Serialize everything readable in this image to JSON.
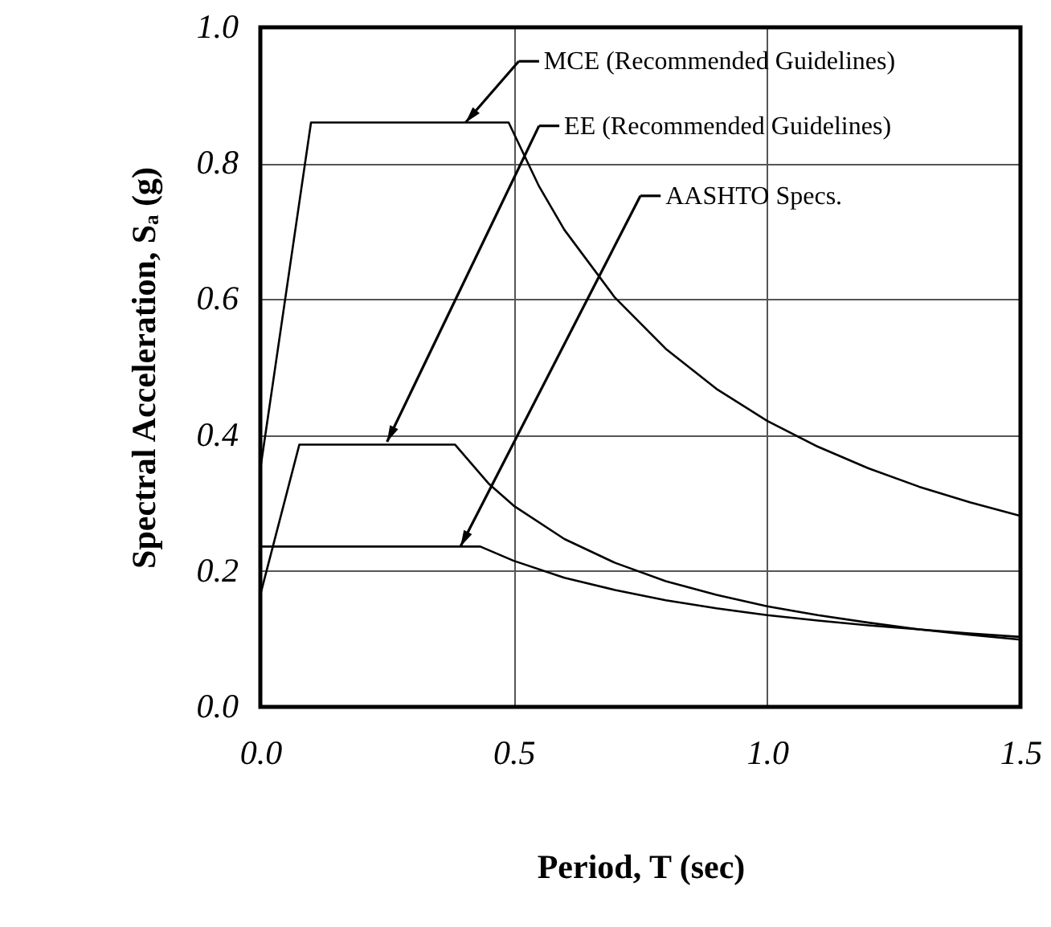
{
  "chart_data": {
    "type": "line",
    "xlabel": "Period, T (sec)",
    "ylabel": "Spectral Acceleration, Sₐ (g)",
    "xlim": [
      0,
      1.5
    ],
    "ylim": [
      0,
      1.0
    ],
    "xticks": [
      {
        "value": 0,
        "label": "0.0"
      },
      {
        "value": 0.5,
        "label": "0.5"
      },
      {
        "value": 1.0,
        "label": "1.0"
      },
      {
        "value": 1.5,
        "label": "1.5"
      }
    ],
    "yticks": [
      {
        "value": 0,
        "label": "0.0"
      },
      {
        "value": 0.2,
        "label": "0.2"
      },
      {
        "value": 0.4,
        "label": "0.4"
      },
      {
        "value": 0.6,
        "label": "0.6"
      },
      {
        "value": 0.8,
        "label": "0.8"
      },
      {
        "value": 1.0,
        "label": "1.0"
      }
    ],
    "grid": true,
    "marker": "none",
    "line_style": "solid",
    "series": [
      {
        "color": "#000000",
        "x": [
          0,
          0.1,
          0.49,
          0.55,
          0.6,
          0.7,
          0.8,
          0.9,
          1.0,
          1.1,
          1.2,
          1.3,
          1.4,
          1.5
        ],
        "values": [
          0.35,
          0.86,
          0.86,
          0.766,
          0.702,
          0.602,
          0.527,
          0.468,
          0.421,
          0.383,
          0.351,
          0.324,
          0.301,
          0.281
        ]
      },
      {
        "color": "#000000",
        "x": [
          0,
          0.077,
          0.384,
          0.45,
          0.5,
          0.6,
          0.7,
          0.8,
          0.9,
          1.0,
          1.1,
          1.2,
          1.3,
          1.4,
          1.5
        ],
        "values": [
          0.165,
          0.386,
          0.386,
          0.329,
          0.296,
          0.247,
          0.212,
          0.185,
          0.165,
          0.148,
          0.135,
          0.124,
          0.114,
          0.106,
          0.099
        ]
      },
      {
        "color": "#000000",
        "x": [
          0,
          0.434,
          0.5,
          0.6,
          0.7,
          0.8,
          0.9,
          1.0,
          1.1,
          1.2,
          1.3,
          1.4,
          1.5
        ],
        "values": [
          0.236,
          0.236,
          0.215,
          0.19,
          0.172,
          0.157,
          0.145,
          0.135,
          0.127,
          0.12,
          0.114,
          0.108,
          0.103
        ]
      }
    ],
    "annotations": [
      {
        "text": "MCE (Recommended Guidelines)",
        "x": 0.405,
        "y": 0.86
      },
      {
        "text": "EE (Recommended Guidelines)",
        "x": 0.25,
        "y": 0.39
      },
      {
        "text": "AASHTO Specs.",
        "x": 0.395,
        "y": 0.236
      }
    ]
  }
}
